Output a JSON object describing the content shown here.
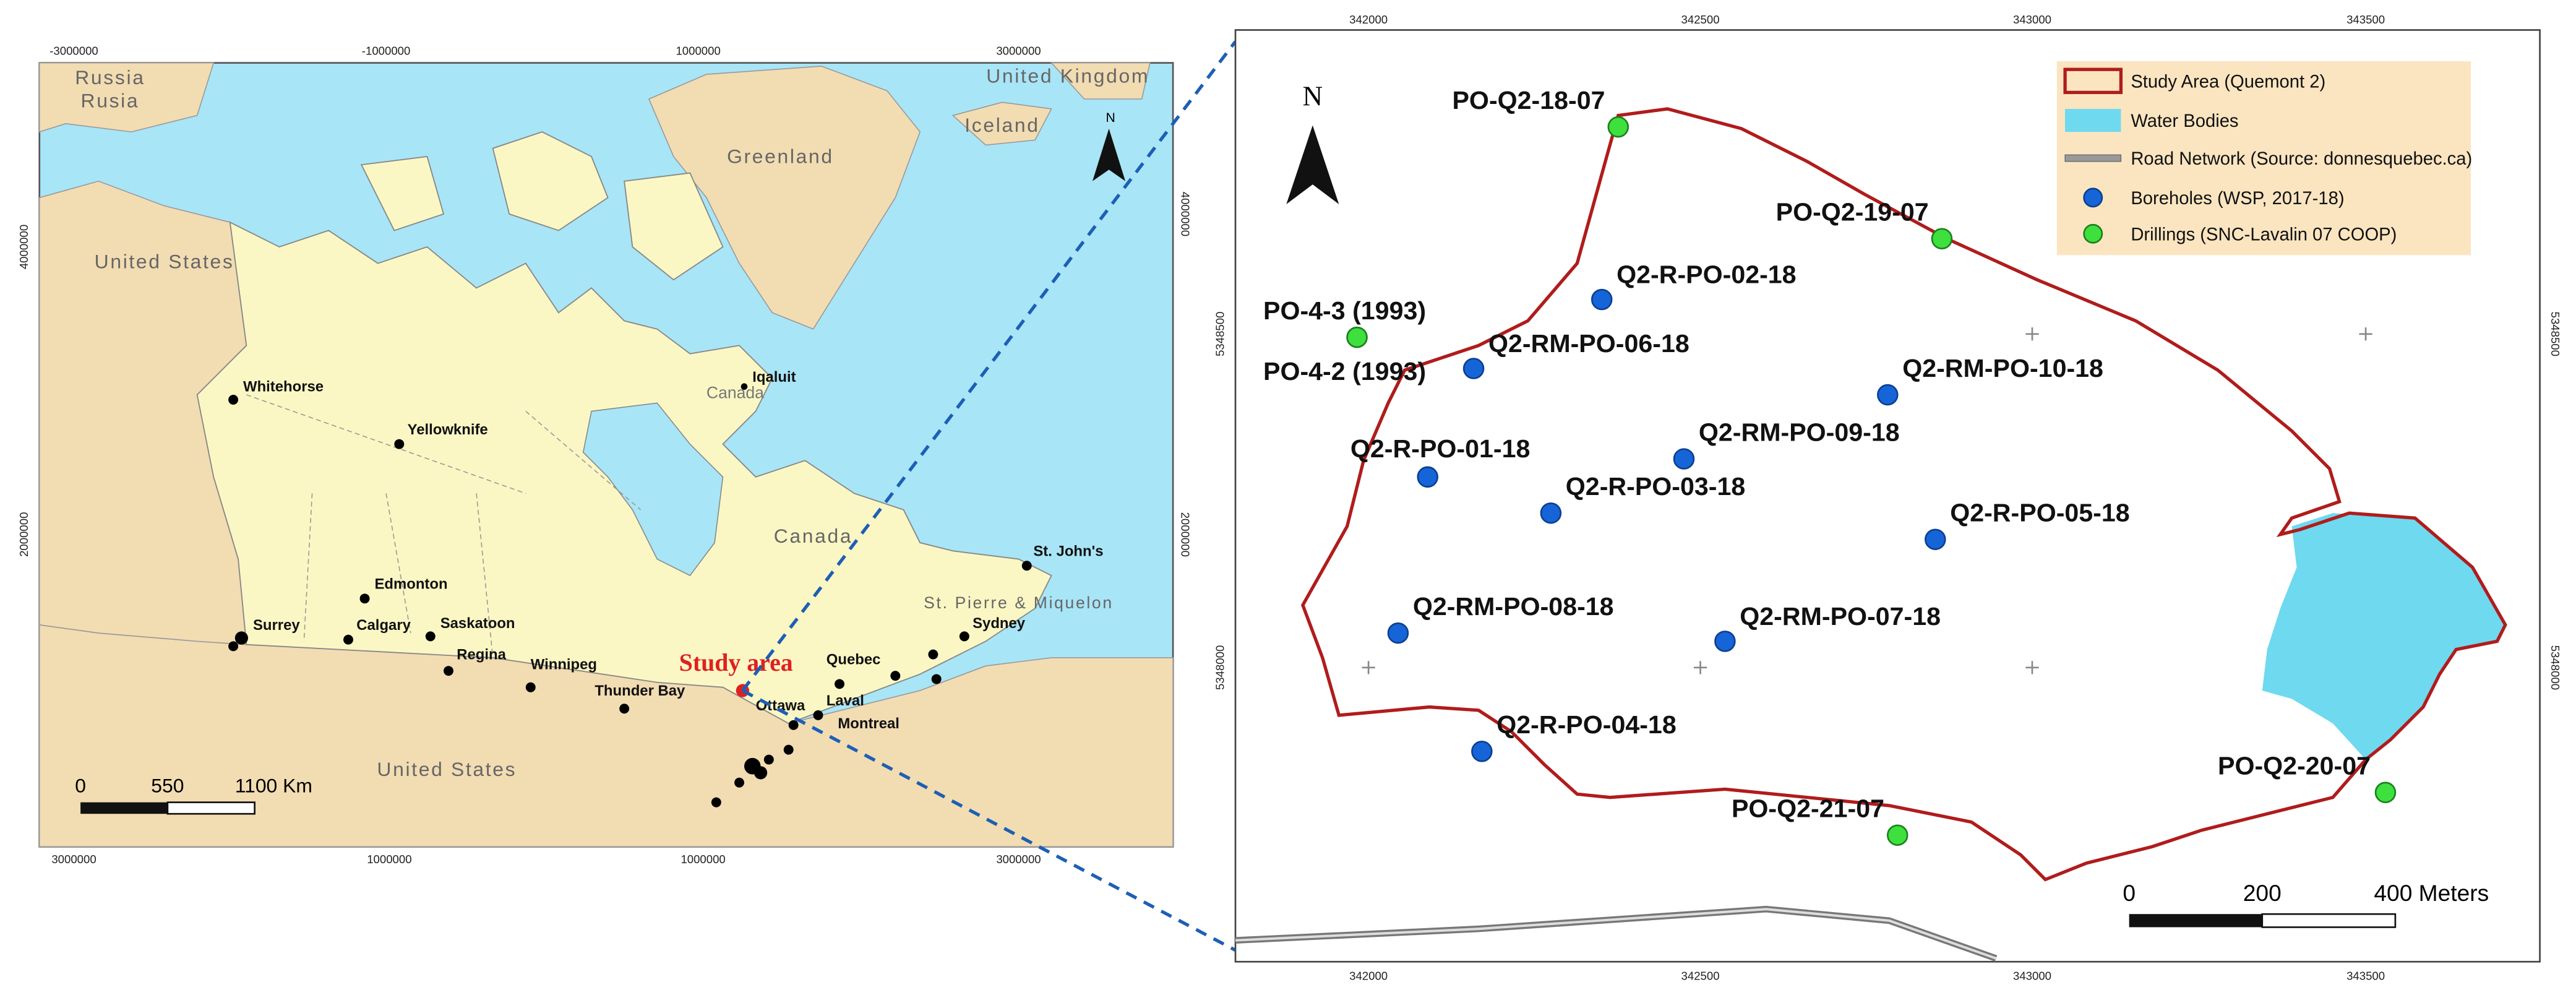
{
  "left_map": {
    "top_ticks": [
      "-3000000",
      "-1000000",
      "1000000",
      "3000000"
    ],
    "bottom_ticks": [
      "3000000",
      "1000000",
      "1000000",
      "3000000"
    ],
    "left_ticks": [
      "4000000",
      "2000000"
    ],
    "right_ticks": [
      "4000000",
      "2000000"
    ],
    "regions": [
      "Russia",
      "Rusia",
      "Greenland",
      "Iceland",
      "United Kingdom",
      "United States",
      "United States",
      "Canada",
      "St. Pierre & Miquelon"
    ],
    "north": "N",
    "cities": [
      "Whitehorse",
      "Yellowknife",
      "Iqaluit",
      "Canada",
      "Edmonton",
      "Calgary",
      "Saskatoon",
      "Regina",
      "Winnipeg",
      "Thunder Bay",
      "Surrey",
      "Ottawa",
      "Laval",
      "Montreal",
      "Quebec",
      "Sydney",
      "St. John's"
    ],
    "study_area": "Study area",
    "scale": [
      "0",
      "550",
      "1100 Km"
    ]
  },
  "right_map": {
    "top_ticks": [
      "342000",
      "342500",
      "343000",
      "343500"
    ],
    "bottom_ticks": [
      "342000",
      "342500",
      "343000",
      "343500"
    ],
    "left_ticks": [
      "5348500",
      "5348000"
    ],
    "right_ticks": [
      "5348500",
      "5348000"
    ],
    "north": "N",
    "legend": [
      "Study Area (Quemont 2)",
      "Water Bodies",
      "Road Network (Source: donnesquebec.ca)",
      "Boreholes (WSP, 2017-18)",
      "Drillings (SNC-Lavalin 07 COOP)"
    ],
    "boreholes": [
      "Q2-R-PO-02-18",
      "Q2-RM-PO-06-18",
      "Q2-RM-PO-10-18",
      "Q2-RM-PO-09-18",
      "Q2-R-PO-01-18",
      "Q2-R-PO-03-18",
      "Q2-R-PO-05-18",
      "Q2-RM-PO-08-18",
      "Q2-RM-PO-07-18",
      "Q2-R-PO-04-18"
    ],
    "drillings": [
      "PO-Q2-18-07",
      "PO-Q2-19-07",
      "PO-4-3 (1993)",
      "PO-4-2 (1993)",
      "PO-Q2-20-07",
      "PO-Q2-21-07"
    ],
    "scale": [
      "0",
      "200",
      "400 Meters"
    ]
  }
}
